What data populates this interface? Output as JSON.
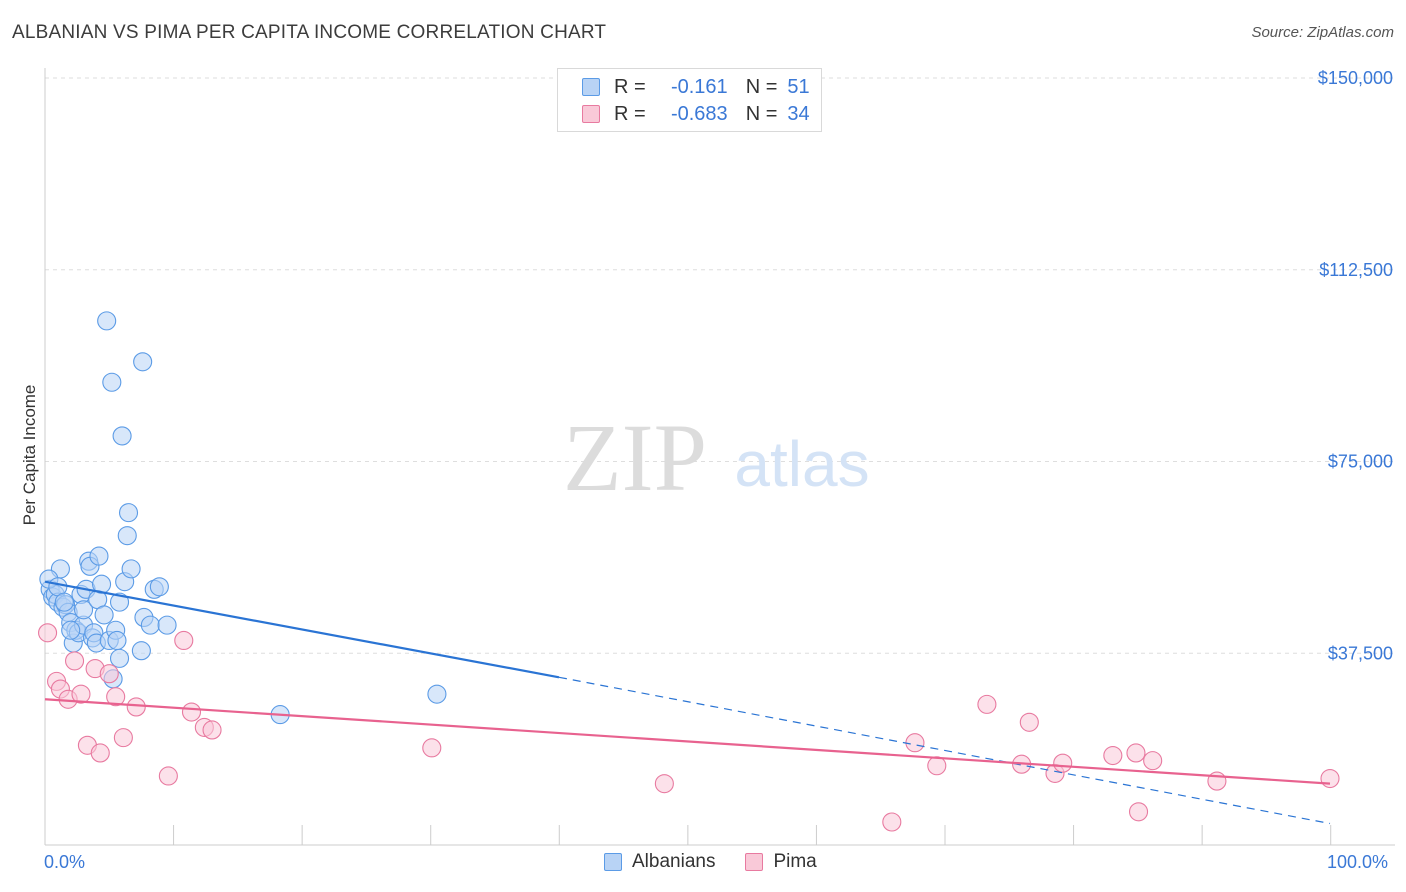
{
  "title": "ALBANIAN VS PIMA PER CAPITA INCOME CORRELATION CHART",
  "source": "Source: ZipAtlas.com",
  "watermark": {
    "zip": "ZIP",
    "atlas": "atlas"
  },
  "legend": {
    "rows": [
      {
        "r_label": "R =",
        "r_value": "-0.161",
        "n_label": "N =",
        "n_value": "51",
        "color": "#9dc3f0"
      },
      {
        "r_label": "R =",
        "r_value": "-0.683",
        "n_label": "N =",
        "n_value": "34",
        "color": "#f5b8cb"
      }
    ]
  },
  "bottom_legend": {
    "albanians": "Albanians",
    "pima": "Pima"
  },
  "chart_data": {
    "type": "scatter",
    "title": "ALBANIAN VS PIMA PER CAPITA INCOME CORRELATION CHART",
    "xlabel": "",
    "ylabel": "Per Capita Income",
    "xlim": [
      0,
      100
    ],
    "ylim": [
      0,
      150000
    ],
    "x_tick_labels": [
      "0.0%",
      "100.0%"
    ],
    "y_ticks": [
      37500,
      75000,
      112500,
      150000
    ],
    "y_tick_labels": [
      "$37,500",
      "$75,000",
      "$112,500",
      "$150,000"
    ],
    "grid": true,
    "legend_position": "top-center",
    "series": [
      {
        "name": "Albanians",
        "color": "#5b9be6",
        "fill": "#b8d3f5",
        "trend": {
          "x": [
            0,
            40
          ],
          "y": [
            51500,
            32800
          ],
          "dashed_to": [
            100,
            4200
          ]
        },
        "points": [
          [
            0.4,
            50000
          ],
          [
            0.6,
            48500
          ],
          [
            0.8,
            49000
          ],
          [
            1.0,
            47500
          ],
          [
            1.2,
            54000
          ],
          [
            1.4,
            46500
          ],
          [
            1.6,
            47000
          ],
          [
            1.8,
            45500
          ],
          [
            2.0,
            43500
          ],
          [
            2.2,
            39500
          ],
          [
            2.4,
            42000
          ],
          [
            2.6,
            41500
          ],
          [
            2.8,
            49000
          ],
          [
            3.0,
            43000
          ],
          [
            3.0,
            46000
          ],
          [
            3.2,
            50000
          ],
          [
            3.4,
            55500
          ],
          [
            3.5,
            54500
          ],
          [
            3.7,
            40500
          ],
          [
            3.8,
            41500
          ],
          [
            4.0,
            39500
          ],
          [
            4.1,
            48000
          ],
          [
            4.2,
            56500
          ],
          [
            4.4,
            51000
          ],
          [
            4.6,
            45000
          ],
          [
            4.8,
            102500
          ],
          [
            5.0,
            40000
          ],
          [
            5.2,
            90500
          ],
          [
            5.3,
            32500
          ],
          [
            5.5,
            42000
          ],
          [
            5.6,
            40000
          ],
          [
            5.8,
            36500
          ],
          [
            6.0,
            80000
          ],
          [
            6.2,
            51500
          ],
          [
            6.4,
            60500
          ],
          [
            6.5,
            65000
          ],
          [
            6.7,
            54000
          ],
          [
            7.5,
            38000
          ],
          [
            7.6,
            94500
          ],
          [
            7.7,
            44500
          ],
          [
            8.2,
            43000
          ],
          [
            8.5,
            50000
          ],
          [
            8.9,
            50500
          ],
          [
            9.5,
            43000
          ],
          [
            18.3,
            25500
          ],
          [
            30.5,
            29500
          ],
          [
            0.3,
            52000
          ],
          [
            1.0,
            50500
          ],
          [
            1.5,
            47500
          ],
          [
            2.0,
            42000
          ],
          [
            5.8,
            47500
          ]
        ]
      },
      {
        "name": "Pima",
        "color": "#e87aa0",
        "fill": "#f9c9d8",
        "trend": {
          "x": [
            0,
            100
          ],
          "y": [
            28500,
            12000
          ]
        },
        "points": [
          [
            0.2,
            41500
          ],
          [
            0.9,
            32000
          ],
          [
            1.2,
            30500
          ],
          [
            1.8,
            28500
          ],
          [
            2.3,
            36000
          ],
          [
            2.8,
            29500
          ],
          [
            3.3,
            19500
          ],
          [
            3.9,
            34500
          ],
          [
            4.3,
            18000
          ],
          [
            5.0,
            33500
          ],
          [
            5.5,
            29000
          ],
          [
            6.1,
            21000
          ],
          [
            7.1,
            27000
          ],
          [
            9.6,
            13500
          ],
          [
            10.8,
            40000
          ],
          [
            11.4,
            26000
          ],
          [
            12.4,
            23000
          ],
          [
            13.0,
            22500
          ],
          [
            30.1,
            19000
          ],
          [
            48.2,
            12000
          ],
          [
            65.9,
            4500
          ],
          [
            67.7,
            20000
          ],
          [
            69.4,
            15500
          ],
          [
            73.3,
            27500
          ],
          [
            76.0,
            15800
          ],
          [
            76.6,
            24000
          ],
          [
            78.6,
            14000
          ],
          [
            79.2,
            16000
          ],
          [
            83.1,
            17500
          ],
          [
            85.1,
            6500
          ],
          [
            84.9,
            18000
          ],
          [
            86.2,
            16500
          ],
          [
            91.2,
            12500
          ],
          [
            100.0,
            13000
          ]
        ]
      }
    ]
  }
}
